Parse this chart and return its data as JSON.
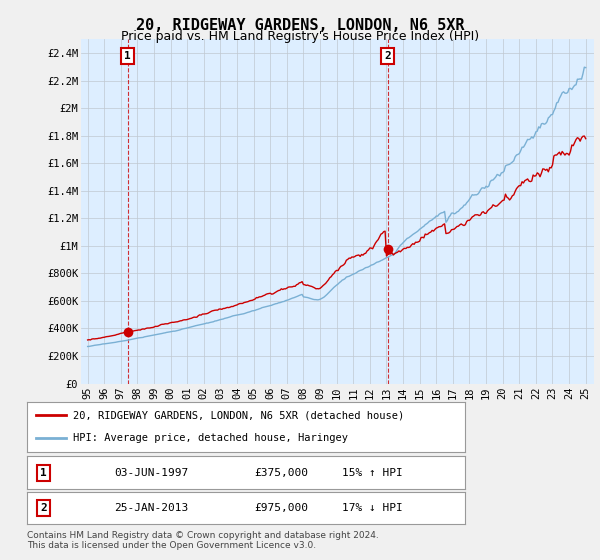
{
  "title": "20, RIDGEWAY GARDENS, LONDON, N6 5XR",
  "subtitle": "Price paid vs. HM Land Registry's House Price Index (HPI)",
  "ylabel_ticks": [
    "£0",
    "£200K",
    "£400K",
    "£600K",
    "£800K",
    "£1M",
    "£1.2M",
    "£1.4M",
    "£1.6M",
    "£1.8M",
    "£2M",
    "£2.2M",
    "£2.4M"
  ],
  "ytick_values": [
    0,
    200000,
    400000,
    600000,
    800000,
    1000000,
    1200000,
    1400000,
    1600000,
    1800000,
    2000000,
    2200000,
    2400000
  ],
  "ylim": [
    0,
    2500000
  ],
  "xlim_start": 1994.6,
  "xlim_end": 2025.5,
  "xticks": [
    1995,
    1996,
    1997,
    1998,
    1999,
    2000,
    2001,
    2002,
    2003,
    2004,
    2005,
    2006,
    2007,
    2008,
    2009,
    2010,
    2011,
    2012,
    2013,
    2014,
    2015,
    2016,
    2017,
    2018,
    2019,
    2020,
    2021,
    2022,
    2023,
    2024,
    2025
  ],
  "sale1_x": 1997.42,
  "sale1_y": 375000,
  "sale2_x": 2013.07,
  "sale2_y": 975000,
  "vline1_x": 1997.42,
  "vline2_x": 2013.07,
  "line_color_red": "#cc0000",
  "line_color_blue": "#7ab0d4",
  "plot_bg_color": "#ddeeff",
  "background_color": "#f0f0f0",
  "legend_label_red": "20, RIDGEWAY GARDENS, LONDON, N6 5XR (detached house)",
  "legend_label_blue": "HPI: Average price, detached house, Haringey",
  "table_row1": [
    "1",
    "03-JUN-1997",
    "£375,000",
    "15% ↑ HPI"
  ],
  "table_row2": [
    "2",
    "25-JAN-2013",
    "£975,000",
    "17% ↓ HPI"
  ],
  "footer": "Contains HM Land Registry data © Crown copyright and database right 2024.\nThis data is licensed under the Open Government Licence v3.0.",
  "title_fontsize": 11,
  "subtitle_fontsize": 9
}
